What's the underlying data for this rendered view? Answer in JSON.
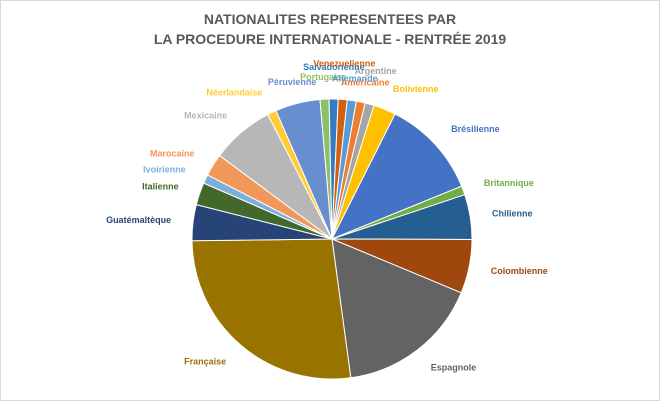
{
  "chart_data": {
    "type": "pie",
    "title_line1": "NATIONALITES REPRESENTEES PAR",
    "title_line2": "LA PROCEDURE INTERNATIONALE - RENTRÉE 2019",
    "slices": [
      {
        "label": "Américaine",
        "value": 1.0,
        "color": "#ed7d31"
      },
      {
        "label": "Argentine",
        "value": 1.0,
        "color": "#a5a5a5"
      },
      {
        "label": "Bolivienne",
        "value": 2.5,
        "color": "#ffc000"
      },
      {
        "label": "Brésilienne",
        "value": 11.0,
        "color": "#4472c4"
      },
      {
        "label": "Britannique",
        "value": 1.0,
        "color": "#70ad47"
      },
      {
        "label": "Chilienne",
        "value": 5.0,
        "color": "#255e91"
      },
      {
        "label": "Colombienne",
        "value": 6.0,
        "color": "#9e480e"
      },
      {
        "label": "Espagnole",
        "value": 16.0,
        "color": "#636363"
      },
      {
        "label": "Française",
        "value": 26.0,
        "color": "#997300"
      },
      {
        "label": "Guatémaltèque",
        "value": 4.0,
        "color": "#264478"
      },
      {
        "label": "Italienne",
        "value": 2.5,
        "color": "#43682b"
      },
      {
        "label": "Ivoirienne",
        "value": 1.0,
        "color": "#7cafdd"
      },
      {
        "label": "Marocaine",
        "value": 2.5,
        "color": "#f1975a"
      },
      {
        "label": "Mexicaine",
        "value": 7.0,
        "color": "#b7b7b7"
      },
      {
        "label": "Néerlandaise",
        "value": 1.0,
        "color": "#ffcd33"
      },
      {
        "label": "Péruvienne",
        "value": 5.0,
        "color": "#698ed0"
      },
      {
        "label": "Portugaise",
        "value": 1.0,
        "color": "#8cc168"
      },
      {
        "label": "Salvadorienne",
        "value": 1.0,
        "color": "#327dc2"
      },
      {
        "label": "Venezuelienne",
        "value": 1.0,
        "color": "#d26012"
      },
      {
        "label": "Allemande",
        "value": 1.0,
        "color": "#5b9bd5"
      }
    ],
    "legend": "none"
  }
}
